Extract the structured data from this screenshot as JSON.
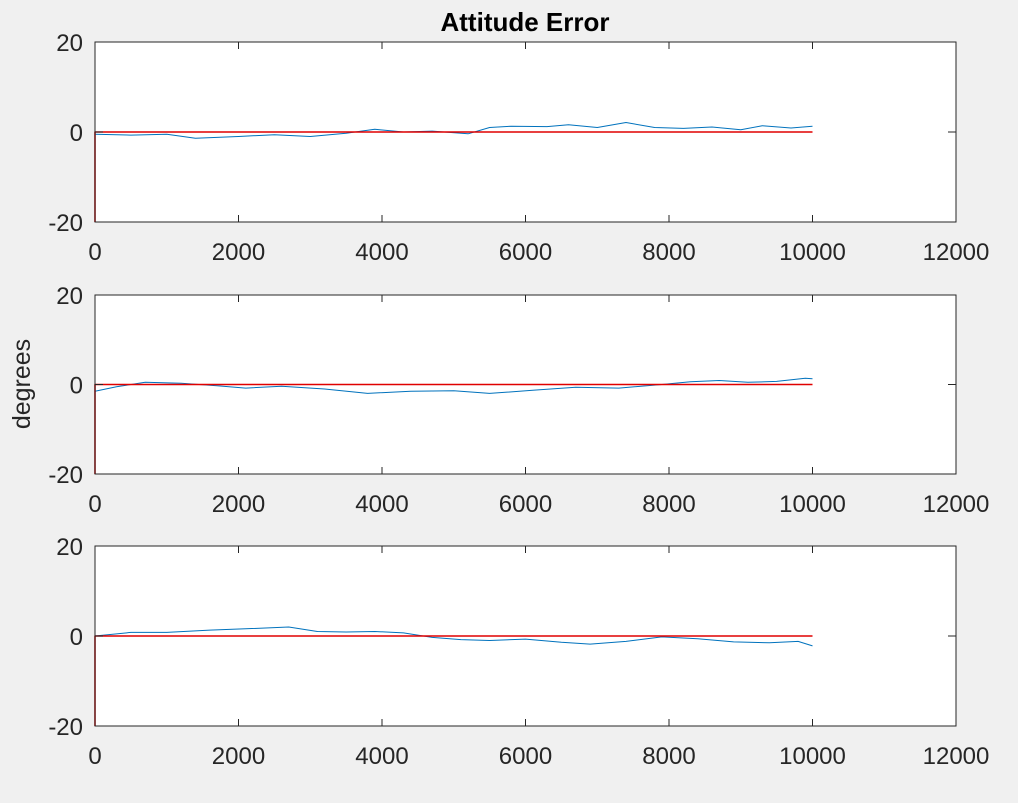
{
  "figure": {
    "title": "Attitude Error",
    "ylabel": "degrees"
  },
  "colors": {
    "background": "#f0f0f0",
    "axes_face": "#ffffff",
    "axes_edge": "#262626",
    "error_series": "#0072bd",
    "reference_series": "#e00000"
  },
  "chart_data": [
    {
      "type": "line",
      "title": "Attitude Error",
      "xlabel": "",
      "ylabel": "",
      "xlim": [
        0,
        12000
      ],
      "ylim": [
        -20,
        20
      ],
      "xticks": [
        0,
        2000,
        4000,
        6000,
        8000,
        10000,
        12000
      ],
      "yticks": [
        -20,
        0,
        20
      ],
      "grid": false,
      "series": [
        {
          "color": "#0072bd",
          "x": [
            0,
            500,
            1000,
            1400,
            2000,
            2500,
            3000,
            3500,
            3900,
            4300,
            4700,
            5200,
            5500,
            5800,
            6300,
            6600,
            7000,
            7400,
            7800,
            8200,
            8600,
            9000,
            9300,
            9700,
            10000
          ],
          "y": [
            -0.5,
            -0.7,
            -0.5,
            -1.4,
            -1.0,
            -0.6,
            -1.0,
            -0.3,
            0.6,
            0.0,
            0.2,
            -0.4,
            1.0,
            1.3,
            1.2,
            1.6,
            1.0,
            2.1,
            1.0,
            0.8,
            1.1,
            0.5,
            1.4,
            0.9,
            1.3
          ]
        },
        {
          "color": "#e00000",
          "x": [
            0,
            0,
            10000
          ],
          "y": [
            -20,
            0,
            0
          ]
        }
      ]
    },
    {
      "type": "line",
      "xlabel": "",
      "ylabel": "degrees",
      "xlim": [
        0,
        12000
      ],
      "ylim": [
        -20,
        20
      ],
      "xticks": [
        0,
        2000,
        4000,
        6000,
        8000,
        10000,
        12000
      ],
      "yticks": [
        -20,
        0,
        20
      ],
      "grid": false,
      "series": [
        {
          "color": "#0072bd",
          "x": [
            0,
            300,
            700,
            1200,
            1700,
            2100,
            2600,
            3200,
            3800,
            4400,
            5000,
            5500,
            6100,
            6700,
            7300,
            7900,
            8300,
            8700,
            9100,
            9500,
            9900,
            10000
          ],
          "y": [
            -1.5,
            -0.5,
            0.5,
            0.3,
            -0.3,
            -0.8,
            -0.4,
            -1.0,
            -2.0,
            -1.5,
            -1.4,
            -2.0,
            -1.3,
            -0.6,
            -0.8,
            0.0,
            0.6,
            0.9,
            0.5,
            0.7,
            1.4,
            1.3
          ]
        },
        {
          "color": "#e00000",
          "x": [
            0,
            0,
            10000
          ],
          "y": [
            -20,
            0,
            0
          ]
        }
      ]
    },
    {
      "type": "line",
      "xlabel": "",
      "ylabel": "",
      "xlim": [
        0,
        12000
      ],
      "ylim": [
        -20,
        20
      ],
      "xticks": [
        0,
        2000,
        4000,
        6000,
        8000,
        10000,
        12000
      ],
      "yticks": [
        -20,
        0,
        20
      ],
      "grid": false,
      "series": [
        {
          "color": "#0072bd",
          "x": [
            0,
            500,
            1000,
            1600,
            2100,
            2700,
            3100,
            3500,
            3900,
            4300,
            4700,
            5100,
            5500,
            6000,
            6500,
            6900,
            7400,
            7900,
            8400,
            8900,
            9400,
            9800,
            10000
          ],
          "y": [
            0.0,
            0.8,
            0.8,
            1.3,
            1.6,
            2.0,
            1.0,
            0.9,
            1.0,
            0.7,
            -0.3,
            -0.8,
            -1.0,
            -0.7,
            -1.4,
            -1.8,
            -1.2,
            -0.2,
            -0.6,
            -1.3,
            -1.5,
            -1.2,
            -2.2
          ]
        },
        {
          "color": "#e00000",
          "x": [
            0,
            0,
            10000
          ],
          "y": [
            -20,
            0,
            0
          ]
        }
      ]
    }
  ]
}
